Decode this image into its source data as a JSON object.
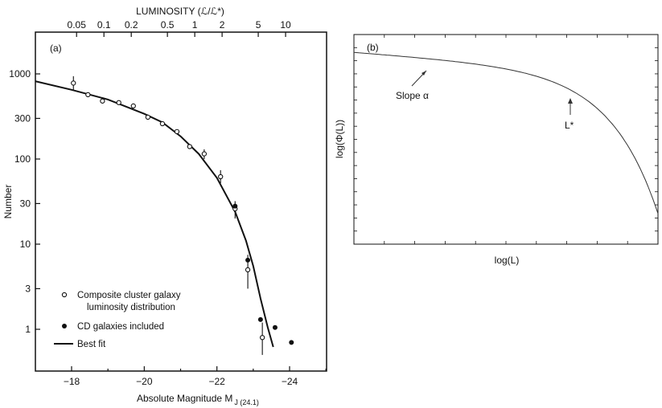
{
  "chart_data": [
    {
      "type": "scatter",
      "panel_label": "(a)",
      "xlabel": "Absolute Magnitude M",
      "xlabel_sub": "J (24.1)",
      "ylabel": "Number",
      "top_axis_label": "LUMINOSITY (ℒ/ℒ*)",
      "xlim": [
        -17,
        -25
      ],
      "ylim": [
        0.5,
        2000
      ],
      "y_scale": "log",
      "x_ticks": [
        -18,
        -20,
        -22,
        -24
      ],
      "x_tick_labels": [
        "−18",
        "−20",
        "−22",
        "−24"
      ],
      "y_ticks": [
        1,
        3,
        10,
        30,
        100,
        300,
        1000
      ],
      "y_tick_labels": [
        "1",
        "3",
        "10",
        "30",
        "100",
        "300",
        "1000"
      ],
      "top_ticks": [
        0.05,
        0.1,
        0.2,
        0.5,
        1,
        2,
        5,
        10
      ],
      "top_tick_labels": [
        "0.05",
        "0.1",
        "0.2",
        "0.5",
        "1",
        "2",
        "5",
        "10"
      ],
      "legend": [
        {
          "marker": "open-circle",
          "label_line1": "Composite cluster galaxy",
          "label_line2": "luminosity distribution"
        },
        {
          "marker": "filled-circle",
          "label_line1": "CD galaxies included",
          "label_line2": ""
        },
        {
          "marker": "line",
          "label_line1": "Best fit",
          "label_line2": ""
        }
      ],
      "series": [
        {
          "name": "Composite cluster galaxy luminosity distribution",
          "marker": "open",
          "points": [
            {
              "x": -18.05,
              "y": 780,
              "err": [
                650,
                940
              ]
            },
            {
              "x": -18.45,
              "y": 570
            },
            {
              "x": -18.85,
              "y": 480
            },
            {
              "x": -19.3,
              "y": 460
            },
            {
              "x": -19.7,
              "y": 420
            },
            {
              "x": -20.1,
              "y": 310
            },
            {
              "x": -20.5,
              "y": 260
            },
            {
              "x": -20.9,
              "y": 210
            },
            {
              "x": -21.25,
              "y": 140
            },
            {
              "x": -21.65,
              "y": 115,
              "err": [
                100,
                130
              ]
            },
            {
              "x": -22.1,
              "y": 62,
              "err": [
                52,
                74
              ]
            },
            {
              "x": -22.5,
              "y": 26,
              "err": [
                20,
                32
              ]
            },
            {
              "x": -22.85,
              "y": 5.0,
              "err": [
                3.0,
                7.5
              ]
            },
            {
              "x": -23.25,
              "y": 0.8,
              "err": [
                0.5,
                1.2
              ]
            }
          ]
        },
        {
          "name": "CD galaxies included",
          "marker": "filled",
          "points": [
            {
              "x": -22.5,
              "y": 28
            },
            {
              "x": -22.85,
              "y": 6.5
            },
            {
              "x": -23.2,
              "y": 1.3
            },
            {
              "x": -23.6,
              "y": 1.05
            },
            {
              "x": -24.05,
              "y": 0.7
            }
          ]
        },
        {
          "name": "Best fit",
          "marker": "line",
          "curve": [
            {
              "x": -17.0,
              "y": 820
            },
            {
              "x": -18.0,
              "y": 650
            },
            {
              "x": -19.0,
              "y": 500
            },
            {
              "x": -20.0,
              "y": 340
            },
            {
              "x": -20.5,
              "y": 270
            },
            {
              "x": -21.0,
              "y": 185
            },
            {
              "x": -21.5,
              "y": 115
            },
            {
              "x": -22.0,
              "y": 60
            },
            {
              "x": -22.5,
              "y": 24
            },
            {
              "x": -22.8,
              "y": 11
            },
            {
              "x": -23.0,
              "y": 5.5
            },
            {
              "x": -23.2,
              "y": 2.3
            },
            {
              "x": -23.4,
              "y": 1.05
            },
            {
              "x": -23.55,
              "y": 0.62
            }
          ]
        }
      ]
    },
    {
      "type": "line",
      "panel_label": "(b)",
      "xlabel": "log(L)",
      "ylabel": "log(Φ(L))",
      "annotations": [
        {
          "text": "Slope α",
          "target": "faint-end slope"
        },
        {
          "text": "L*",
          "target": "knee"
        }
      ],
      "curve_shape": "Schechter function (schematic, no numeric axes)"
    }
  ]
}
